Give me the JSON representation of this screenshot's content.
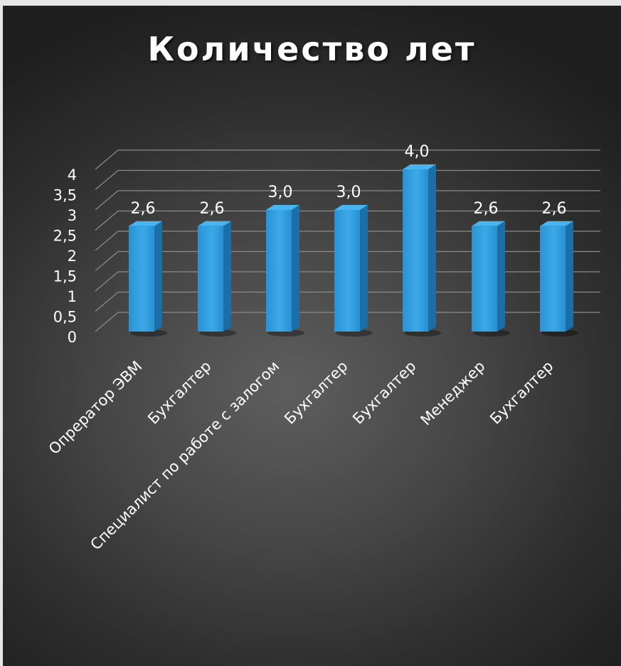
{
  "chart_data": {
    "type": "bar",
    "title": "Количество лет",
    "categories": [
      "Опрератор ЭВМ",
      "Бухгалтер",
      "Специалист по работе с залогом",
      "Бухгалтер",
      "Бухгалтер",
      "Менеджер",
      "Бухгалтер"
    ],
    "values": [
      2.6,
      2.6,
      3.0,
      3.0,
      4.0,
      2.6,
      2.6
    ],
    "data_labels": [
      "2,6",
      "2,6",
      "3,0",
      "3,0",
      "4,0",
      "2,6",
      "2,6"
    ],
    "y_ticks": [
      "0",
      "0,5",
      "1",
      "1,5",
      "2",
      "2,5",
      "3",
      "3,5",
      "4"
    ],
    "ylim": [
      0,
      4
    ],
    "grid": true,
    "legend": "none",
    "colors": {
      "bar_front": "#2f9fe0",
      "bar_side": "#1a6fa8",
      "bar_top": "#4ab4ee",
      "grid": "#8a8a8a",
      "text": "#ffffff"
    }
  }
}
